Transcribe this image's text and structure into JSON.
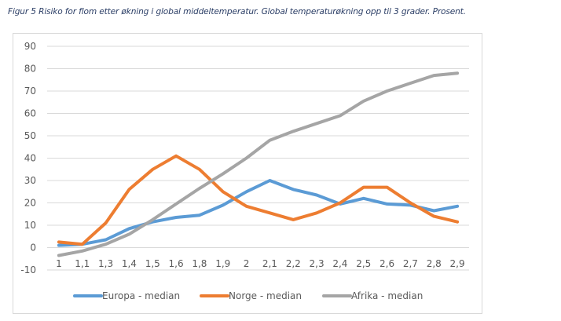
{
  "caption": "Figur 5 Risiko for flom etter økning i global middeltemperatur. Global temperaturøkning opp til 3 grader. Prosent.",
  "chart_data": {
    "type": "line",
    "title": "Figur 5 Risiko for flom etter økning i global middeltemperatur. Global temperaturøkning opp til 3 grader. Prosent.",
    "xlabel": "",
    "ylabel": "",
    "categories": [
      "1",
      "1,1",
      "1,3",
      "1,4",
      "1,5",
      "1,6",
      "1,8",
      "1,9",
      "2",
      "2,1",
      "2,2",
      "2,3",
      "2,4",
      "2,5",
      "2,6",
      "2,7",
      "2,8",
      "2,9"
    ],
    "ylim": [
      -10,
      90
    ],
    "yticks": [
      -10,
      0,
      10,
      20,
      30,
      40,
      50,
      60,
      70,
      80,
      90
    ],
    "grid": true,
    "legend_position": "bottom",
    "series": [
      {
        "name": "Europa - median",
        "color": "#5b9bd5",
        "values": [
          1,
          1.5,
          3.5,
          8.5,
          11.5,
          13.5,
          14.5,
          19,
          25,
          30,
          26,
          23.5,
          19.5,
          22,
          19.5,
          19,
          16.5,
          18.5
        ]
      },
      {
        "name": "Norge - median",
        "color": "#ed7d31",
        "values": [
          2.5,
          1.5,
          11,
          26,
          35,
          41,
          35,
          25,
          18.5,
          15.5,
          12.5,
          15.5,
          20,
          27,
          27,
          20,
          14,
          11.5
        ]
      },
      {
        "name": "Afrika - median",
        "color": "#a5a5a5",
        "values": [
          -3.5,
          -1.5,
          1.5,
          6,
          12.5,
          19.5,
          26.5,
          33,
          40,
          48,
          52,
          55.5,
          59,
          65.5,
          70,
          73.5,
          77,
          78
        ]
      }
    ]
  }
}
